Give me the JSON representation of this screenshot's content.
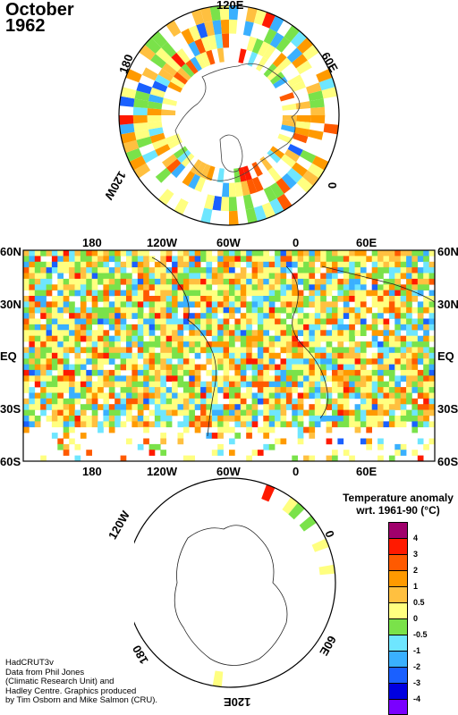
{
  "title": {
    "month": "October",
    "year": "1962"
  },
  "world_map": {
    "top_labels": [
      "180",
      "120W",
      "60W",
      "0",
      "60E"
    ],
    "bottom_labels": [
      "180",
      "120W",
      "60W",
      "0",
      "60E"
    ],
    "left_labels": [
      "60N",
      "30N",
      "EQ",
      "30S",
      "60S"
    ],
    "right_labels": [
      "60N",
      "30N",
      "EQ",
      "30S",
      "60S"
    ]
  },
  "north_polar": {
    "labels": [
      "120E",
      "60E",
      "0",
      "120W",
      "180"
    ]
  },
  "south_polar": {
    "labels": [
      "120W",
      "0",
      "60E",
      "120E",
      "180"
    ]
  },
  "legend": {
    "title": "Temperature anomaly\nwrt. 1961-90  (°C)",
    "labels": [
      "4",
      "3",
      "2",
      "1",
      "0.5",
      "0",
      "-0.5",
      "-1",
      "-2",
      "-3",
      "-4"
    ],
    "colors": [
      "#a0006c",
      "#ff1a00",
      "#ff5a00",
      "#ff9a00",
      "#ffc040",
      "#ffff80",
      "#7ae24a",
      "#6ee6ff",
      "#3ab0ff",
      "#1a60ff",
      "#0000e0",
      "#7a00ff"
    ]
  },
  "credits": "HadCRUT3v\nData from Phil Jones\n(Climatic Research Unit) and\nHadley Centre.  Graphics produced\nby Tim Osborn and Mike Salmon (CRU)."
}
